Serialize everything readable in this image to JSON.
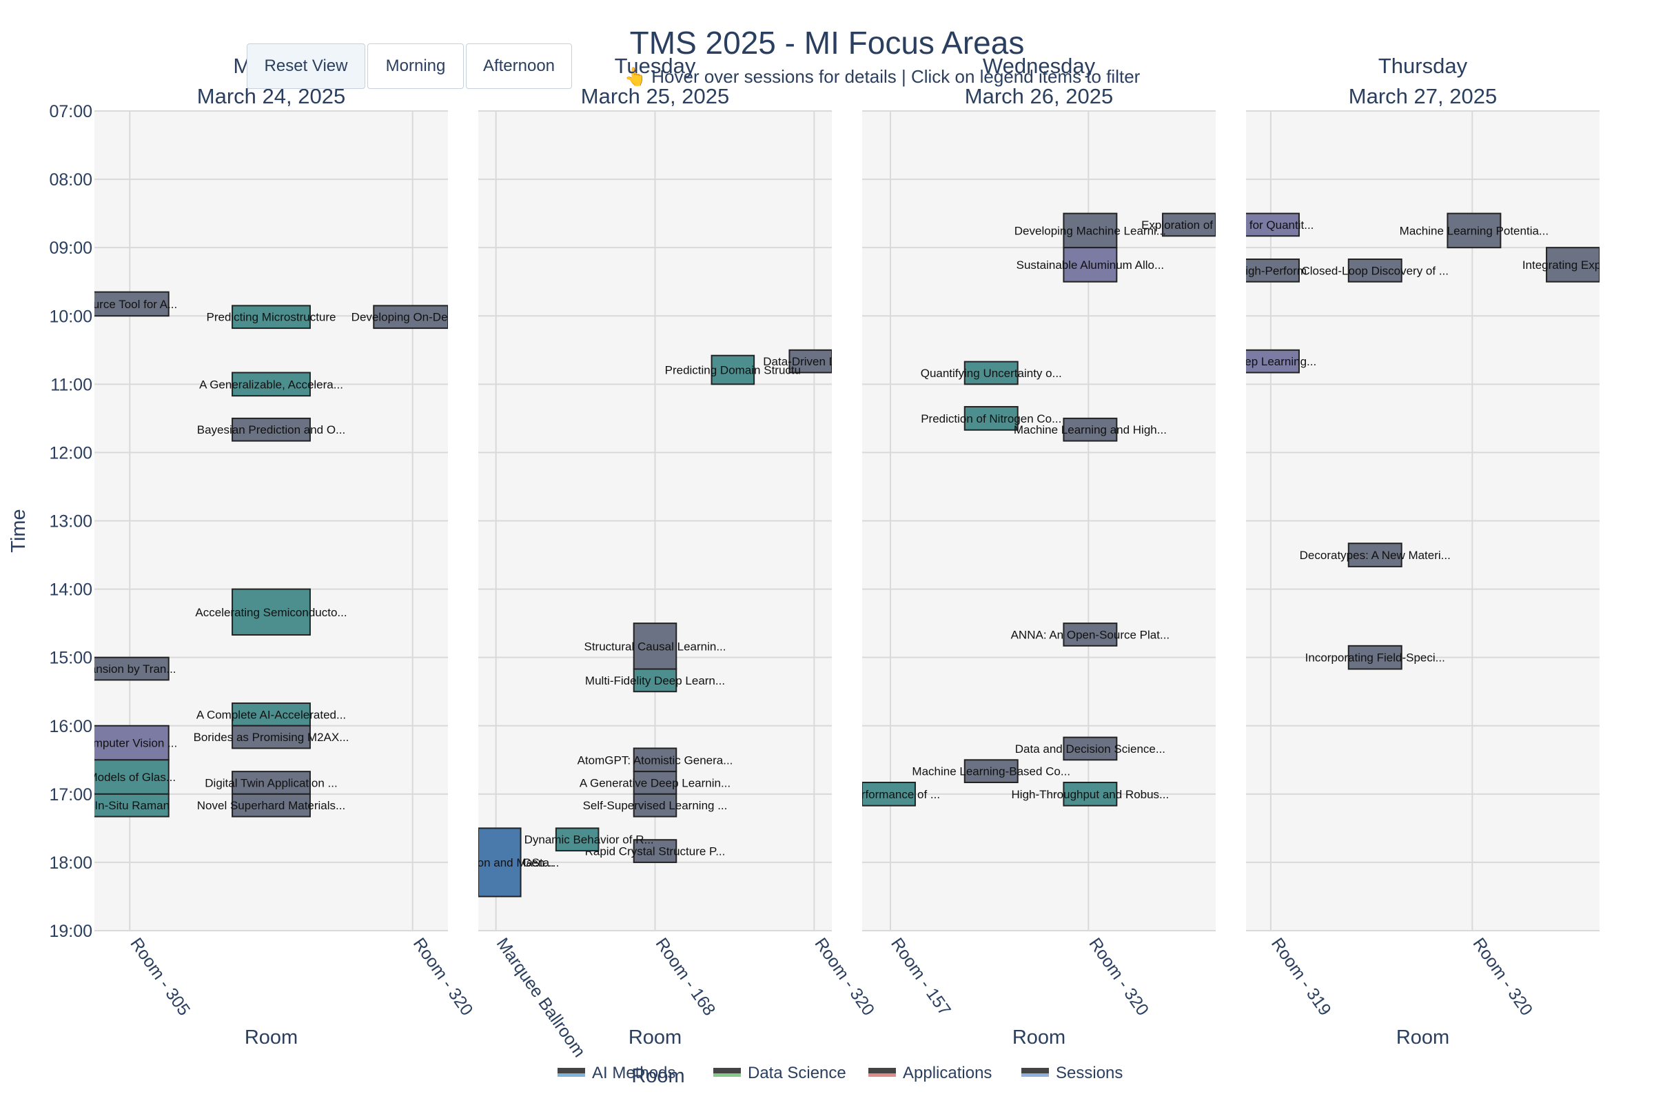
{
  "title": "TMS 2025 - MI Focus Areas",
  "subtitle": "👆 Hover over sessions for details | Click on legend items to filter",
  "buttons": {
    "reset": "Reset View",
    "morning": "Morning",
    "afternoon": "Afternoon"
  },
  "colors": {
    "background_panel": "#f5f5f5",
    "grid": "#d9d9d9",
    "teal": "#4d8f8f",
    "slate": "#6a7283",
    "purple": "#7b7ba3",
    "blue": "#4a7aac",
    "text": "#2a3f5f",
    "legend_ai": "#7fb3d9",
    "legend_ds": "#86c98a",
    "legend_app": "#e08b8b",
    "legend_sessions": "#8fb0d8"
  },
  "chart_data": {
    "type": "timeline",
    "y_axis_title": "Time",
    "x_axis_title": "Room",
    "y_ticks": [
      "07:00",
      "08:00",
      "09:00",
      "10:00",
      "11:00",
      "12:00",
      "13:00",
      "14:00",
      "15:00",
      "16:00",
      "17:00",
      "18:00",
      "19:00"
    ],
    "y_range_hours": [
      7,
      19
    ],
    "legend": [
      "AI Methods",
      "Data Science",
      "Applications",
      "Sessions"
    ],
    "panels": [
      {
        "day": "Monday",
        "date": "March 24, 2025",
        "x_title": "Room",
        "ticks": [
          {
            "label": "Room - 305",
            "pos": 0.1
          },
          {
            "label": "Room - 320",
            "pos": 0.9
          }
        ],
        "bars": [
          {
            "label": "n-Source Tool for A...",
            "x0": -0.05,
            "x1": 0.21,
            "start": 9.65,
            "end": 10.0,
            "color": "slate"
          },
          {
            "label": "Predicting Microstructure",
            "x0": 0.39,
            "x1": 0.61,
            "start": 9.85,
            "end": 10.18,
            "color": "teal"
          },
          {
            "label": "Developing On-Deman",
            "x0": 0.79,
            "x1": 1.0,
            "start": 9.85,
            "end": 10.18,
            "color": "slate"
          },
          {
            "label": "A Generalizable, Accelera...",
            "x0": 0.39,
            "x1": 0.61,
            "start": 10.83,
            "end": 11.17,
            "color": "teal"
          },
          {
            "label": "Bayesian Prediction and O...",
            "x0": 0.39,
            "x1": 0.61,
            "start": 11.5,
            "end": 11.83,
            "color": "slate"
          },
          {
            "label": "Accelerating Semiconducto...",
            "x0": 0.39,
            "x1": 0.61,
            "start": 14.0,
            "end": 14.67,
            "color": "teal"
          },
          {
            "label": "Expansion by Tran...",
            "x0": -0.05,
            "x1": 0.21,
            "start": 15.0,
            "end": 15.33,
            "color": "slate"
          },
          {
            "label": "A Complete AI-Accelerated...",
            "x0": 0.39,
            "x1": 0.61,
            "start": 15.67,
            "end": 16.0,
            "color": "teal"
          },
          {
            "label": "Borides as Promising M2AX...",
            "x0": 0.39,
            "x1": 0.61,
            "start": 16.0,
            "end": 16.33,
            "color": "slate"
          },
          {
            "label": "g Computer Vision ...",
            "x0": -0.05,
            "x1": 0.21,
            "start": 16.0,
            "end": 16.5,
            "color": "purple"
          },
          {
            "label": "ive Models of Glas...",
            "x0": -0.05,
            "x1": 0.21,
            "start": 16.5,
            "end": 17.0,
            "color": "teal"
          },
          {
            "label": "Digital Twin Application ...",
            "x0": 0.39,
            "x1": 0.61,
            "start": 16.67,
            "end": 17.0,
            "color": "slate"
          },
          {
            "label": "ing In-Situ Raman",
            "x0": -0.05,
            "x1": 0.21,
            "start": 17.0,
            "end": 17.33,
            "color": "teal"
          },
          {
            "label": "Novel Superhard Materials...",
            "x0": 0.39,
            "x1": 0.61,
            "start": 17.0,
            "end": 17.33,
            "color": "slate"
          }
        ]
      },
      {
        "day": "Tuesday",
        "date": "March 25, 2025",
        "x_title": "Room",
        "ticks": [
          {
            "label": "Marquee Ballroom",
            "pos": 0.05
          },
          {
            "label": "Room - 168",
            "pos": 0.5
          },
          {
            "label": "Room - 320",
            "pos": 0.95
          }
        ],
        "bars": [
          {
            "label": "Data-Driven Disco",
            "x0": 0.88,
            "x1": 1.0,
            "start": 10.5,
            "end": 10.83,
            "color": "slate"
          },
          {
            "label": "Predicting Domain Structu",
            "x0": 0.66,
            "x1": 0.78,
            "start": 10.58,
            "end": 11.0,
            "color": "teal"
          },
          {
            "label": "Structural Causal Learnin...",
            "x0": 0.44,
            "x1": 0.56,
            "start": 14.5,
            "end": 15.17,
            "color": "slate"
          },
          {
            "label": "Multi-Fidelity Deep Learn...",
            "x0": 0.44,
            "x1": 0.56,
            "start": 15.17,
            "end": 15.5,
            "color": "teal"
          },
          {
            "label": "AtomGPT: Atomistic Genera...",
            "x0": 0.44,
            "x1": 0.56,
            "start": 16.33,
            "end": 16.67,
            "color": "slate"
          },
          {
            "label": "A Generative Deep Learnin...",
            "x0": 0.44,
            "x1": 0.56,
            "start": 16.67,
            "end": 17.0,
            "color": "slate"
          },
          {
            "label": "Self-Supervised Learning ...",
            "x0": 0.44,
            "x1": 0.56,
            "start": 17.0,
            "end": 17.33,
            "color": "slate"
          },
          {
            "label": "Rapid Crystal Structure P...",
            "x0": 0.44,
            "x1": 0.56,
            "start": 17.67,
            "end": 18.0,
            "color": "slate"
          },
          {
            "label": "The Dynamic Behavior of R...",
            "x0": 0.22,
            "x1": 0.34,
            "start": 17.5,
            "end": 17.83,
            "color": "teal"
          },
          {
            "label": "diction and Ma...",
            "x0": 0.0,
            "x1": 0.12,
            "start": 17.5,
            "end": 18.5,
            "color": "blue"
          },
          {
            "label": "Gen...",
            "x0": 0.11,
            "x1": 0.23,
            "start": 18.0,
            "end": 18.0,
            "color": "blue"
          },
          {
            "label": "Sta...",
            "x0": 0.13,
            "x1": 0.25,
            "start": 18.0,
            "end": 18.0,
            "color": "blue"
          }
        ]
      },
      {
        "day": "Wednesday",
        "date": "March 26, 2025",
        "x_title": "Room",
        "ticks": [
          {
            "label": "Room - 157",
            "pos": 0.08
          },
          {
            "label": "Room - 320",
            "pos": 0.64
          }
        ],
        "bars": [
          {
            "label": "Exploration of Nov",
            "x0": 0.85,
            "x1": 1.0,
            "start": 8.5,
            "end": 8.83,
            "color": "slate"
          },
          {
            "label": "Developing Machine Learni...",
            "x0": 0.57,
            "x1": 0.72,
            "start": 8.5,
            "end": 9.0,
            "color": "slate"
          },
          {
            "label": "Sustainable Aluminum Allo...",
            "x0": 0.57,
            "x1": 0.72,
            "start": 9.0,
            "end": 9.5,
            "color": "purple"
          },
          {
            "label": "Quantifying Uncertainty o...",
            "x0": 0.29,
            "x1": 0.44,
            "start": 10.67,
            "end": 11.0,
            "color": "teal"
          },
          {
            "label": "Prediction of Nitrogen Co...",
            "x0": 0.29,
            "x1": 0.44,
            "start": 11.33,
            "end": 11.67,
            "color": "teal"
          },
          {
            "label": "Machine Learning and High...",
            "x0": 0.57,
            "x1": 0.72,
            "start": 11.5,
            "end": 11.83,
            "color": "slate"
          },
          {
            "label": "ANNA: An Open-Source Plat...",
            "x0": 0.57,
            "x1": 0.72,
            "start": 14.5,
            "end": 14.83,
            "color": "slate"
          },
          {
            "label": "Data and Decision Science...",
            "x0": 0.57,
            "x1": 0.72,
            "start": 16.17,
            "end": 16.5,
            "color": "slate"
          },
          {
            "label": "Machine Learning-Based Co...",
            "x0": 0.29,
            "x1": 0.44,
            "start": 16.5,
            "end": 16.83,
            "color": "slate"
          },
          {
            "label": "g Performance of ...",
            "x0": 0.0,
            "x1": 0.15,
            "start": 16.83,
            "end": 17.17,
            "color": "teal"
          },
          {
            "label": "High-Throughput and Robus...",
            "x0": 0.57,
            "x1": 0.72,
            "start": 16.83,
            "end": 17.17,
            "color": "teal"
          }
        ]
      },
      {
        "day": "Thursday",
        "date": "March 27, 2025",
        "x_title": "Room",
        "ticks": [
          {
            "label": "Room - 319",
            "pos": 0.07
          },
          {
            "label": "Room - 320",
            "pos": 0.64
          }
        ],
        "bars": [
          {
            "label": "arning for Quantit...",
            "x0": -0.05,
            "x1": 0.15,
            "start": 8.5,
            "end": 8.83,
            "color": "purple"
          },
          {
            "label": "Machine Learning Potentia...",
            "x0": 0.57,
            "x1": 0.72,
            "start": 8.5,
            "end": 9.0,
            "color": "slate"
          },
          {
            "label": "Integrating Experim",
            "x0": 0.85,
            "x1": 1.0,
            "start": 9.0,
            "end": 9.5,
            "color": "slate"
          },
          {
            "label": "ng High-Perform",
            "x0": -0.05,
            "x1": 0.15,
            "start": 9.17,
            "end": 9.5,
            "color": "slate"
          },
          {
            "label": "Closed-Loop Discovery of ...",
            "x0": 0.29,
            "x1": 0.44,
            "start": 9.17,
            "end": 9.5,
            "color": "slate"
          },
          {
            "label": "ble Deep Learning...",
            "x0": -0.05,
            "x1": 0.15,
            "start": 10.5,
            "end": 10.83,
            "color": "purple"
          },
          {
            "label": "Decoratypes: A New Materi...",
            "x0": 0.29,
            "x1": 0.44,
            "start": 13.33,
            "end": 13.67,
            "color": "slate"
          },
          {
            "label": "Incorporating Field-Speci...",
            "x0": 0.29,
            "x1": 0.44,
            "start": 14.83,
            "end": 15.17,
            "color": "slate"
          }
        ]
      }
    ]
  }
}
